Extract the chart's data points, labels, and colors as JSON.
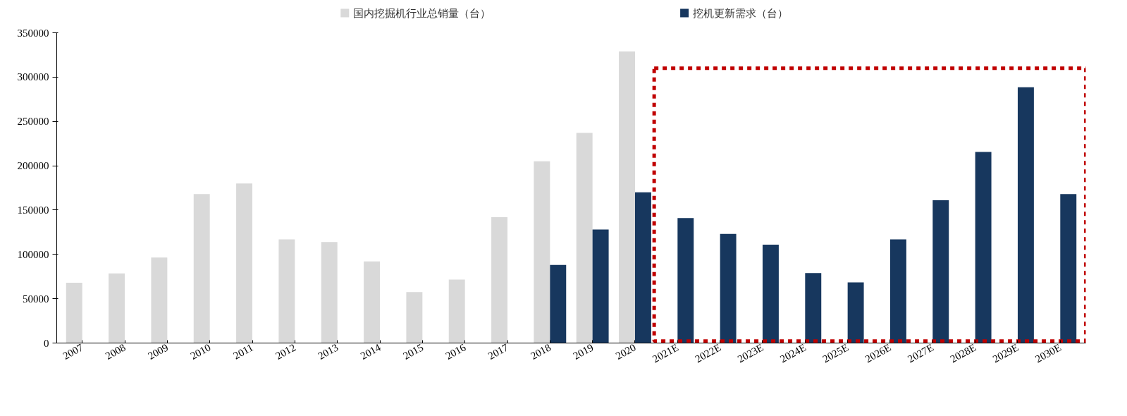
{
  "chart_data": {
    "type": "bar",
    "categories": [
      "2007",
      "2008",
      "2009",
      "2010",
      "2011",
      "2012",
      "2013",
      "2014",
      "2015",
      "2016",
      "2017",
      "2018",
      "2019",
      "2020",
      "2021E",
      "2022E",
      "2023E",
      "2024E",
      "2025E",
      "2026E",
      "2027E",
      "2028E",
      "2029E",
      "2030E"
    ],
    "series": [
      {
        "name": "国内挖掘机行业总销量（台）",
        "color": "#d9d9d9",
        "values": [
          68000,
          78500,
          96500,
          168000,
          180000,
          117000,
          114000,
          92000,
          57500,
          71500,
          142000,
          205000,
          237000,
          329000,
          null,
          null,
          null,
          null,
          null,
          null,
          null,
          null,
          null,
          null
        ]
      },
      {
        "name": "挖机更新需求（台）",
        "color": "#17375e",
        "values": [
          null,
          null,
          null,
          null,
          null,
          null,
          null,
          null,
          null,
          null,
          null,
          88000,
          128000,
          170000,
          141000,
          123000,
          111000,
          79000,
          68500,
          117000,
          161000,
          215500,
          288500,
          168000
        ]
      }
    ],
    "ylim": [
      0,
      350000
    ],
    "yticks": [
      0,
      50000,
      100000,
      150000,
      200000,
      250000,
      300000,
      350000
    ],
    "legend": "top",
    "grid": false
  }
}
